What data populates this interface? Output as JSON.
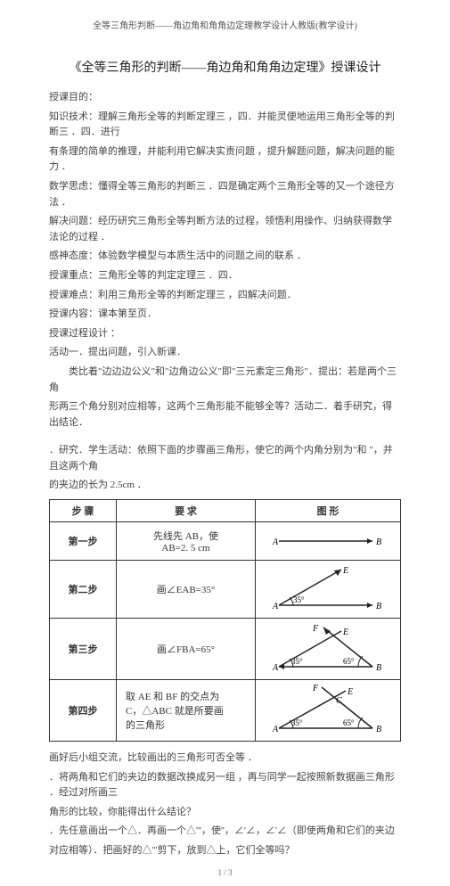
{
  "top_header": "全等三角形判断——角边角和角角边定理教学设计人教版(教学设计)",
  "title": "《全等三角形的判断——角边角和角角边定理》授课设计",
  "intro_lines": [
    "授课目的：",
    "知识技术：理解三角形全等的判断定理三    ，四．并能灵便地运用三角形全等的判断三    ．四．进行",
    "有条理的简单的推理，并能利用它解决实责问题    ，提升解题问题，解决问题的能力 ．",
    "数学思虑：懂得全等三角形的判断三  ．四是确定两个三角形全等的又一个途径方法  ．",
    "解决问题：经历研究三角形全等判断方法的过程，领悟利用操作、归纳获得数学法论的过程 ．",
    "感神态度：体验数学模型与本质生活中的问题之间的联系    ．",
    "授课重点：三角形全等的判定定理三    ．四．",
    "授课难点：利用三角形全等的判断定理三    ，四解决问题．",
    "授课内容：课本第至页．",
    "授课过程设计 ：",
    "活动一．提出问题，引入新课．"
  ],
  "analogy_1": "类比着\"边边边公义\"和\"边角边公义\"即\"三元素定三角形\"．提出：若是两个三角",
  "analogy_2": "形两三个角分别对应相等，这两个三角形能不能够全等？活动二．着手研究，得出结论．",
  "research_1": "．研究．学生活动：依照下面的步骤画三角形，使它的两个内角分别为\"和      \"，并且这两个角",
  "research_2": "的夹边的长为  2.5cm ．",
  "table": {
    "headers": [
      "步 骤",
      "要 求",
      "图 形"
    ],
    "rows": [
      {
        "step": "第一步",
        "req": [
          "先线先 AB，使",
          "AB=2. 5 cm"
        ]
      },
      {
        "step": "第二步",
        "req": [
          "画∠EAB=35°"
        ]
      },
      {
        "step": "第三步",
        "req": [
          "画∠FBA=65°"
        ]
      },
      {
        "step": "第四步",
        "req": [
          "取 AE 和 BF 的交点为",
          "C，△ABC 就是所要画",
          "的三角形"
        ]
      }
    ],
    "colors": {
      "line": "#222",
      "text": "#333"
    }
  },
  "after_1": "画好后小组交流，比较画出的三角形可否全等    ．",
  "after_2": "．将两角和它们的夹边的数据改换成另一组    ，再与同学一起按照新数据画三角形        ．经过对所画三",
  "after_3": "角形的比较，你能得出什么结论？",
  "after_4": "．先任意画出一个△．再画一个△'''，使''，∠'∠，∠'∠（即使两角和它们的夹边",
  "after_5": "对应相等）．把画好的△'''剪下，放到△上，它们全等吗？",
  "footer": "1 / 3"
}
